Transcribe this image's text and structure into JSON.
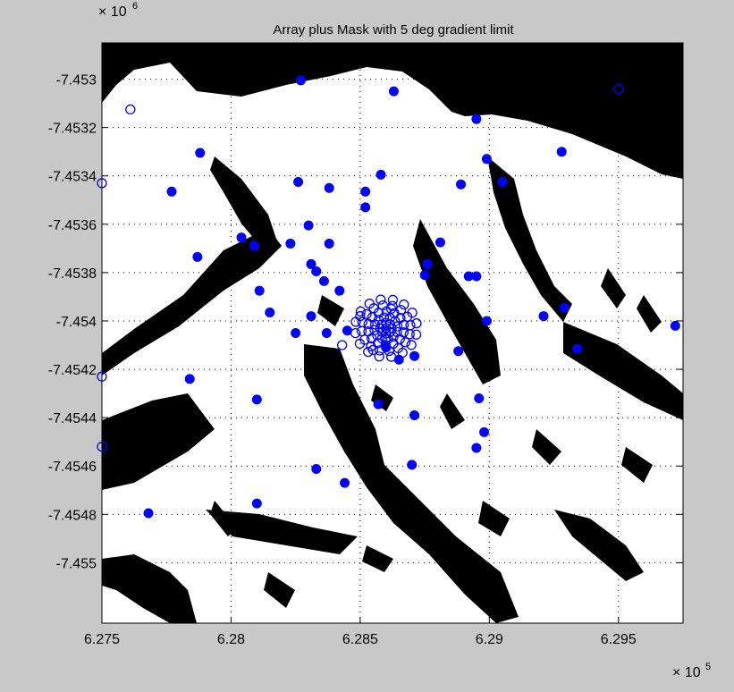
{
  "chart_data": {
    "type": "scatter",
    "title": "Array plus Mask with 5 deg gradient limit",
    "xlabel": "",
    "ylabel": "",
    "x_multiplier": {
      "base": "10",
      "exp": "5"
    },
    "y_multiplier": {
      "base": "10",
      "exp": "6"
    },
    "xlim": [
      627500,
      629750
    ],
    "ylim": [
      -7455250,
      -7452850
    ],
    "xticks": [
      627500,
      628000,
      628500,
      629000,
      629500
    ],
    "xtick_labels": [
      "6.275",
      "6.28",
      "6.285",
      "6.29",
      "6.295"
    ],
    "yticks": [
      -7455000,
      -7454800,
      -7454600,
      -7454400,
      -7454200,
      -7454000,
      -7453800,
      -7453600,
      -7453400,
      -7453200,
      -7453000
    ],
    "ytick_labels": [
      "-7.455",
      "-7.4548",
      "-7.4546",
      "-7.4544",
      "-7.4542",
      "-7.454",
      "-7.4538",
      "-7.4536",
      "-7.4534",
      "-7.4532",
      "-7.453"
    ],
    "grid": true,
    "background_mask": "binary black/white terrain mask (black = gradient above limit)",
    "colors": {
      "marker": "#0000ff",
      "mask": "#000000",
      "background": "#ffffff",
      "figure": "#c8c8c8"
    },
    "series": [
      {
        "marker": "filled-circle",
        "x": [
          627680,
          628100,
          628330,
          628440,
          628700,
          628980,
          628950,
          629720,
          628250,
          628100,
          628570,
          628710,
          627840,
          628960,
          628650,
          628710,
          628370,
          628310,
          628880,
          628150,
          628450,
          628600,
          628420,
          628330,
          628990,
          628110,
          629210,
          628920,
          628950,
          629340,
          627870,
          628040,
          628750,
          628520,
          628380,
          628380,
          629050,
          628580,
          629290,
          627770,
          628360,
          628310,
          628520,
          628760,
          628230,
          628890,
          628260,
          628950,
          628090,
          628810,
          629280,
          628300,
          627880,
          628990,
          628630,
          628270
        ],
        "y": [
          -7454795,
          -7454755,
          -7454612,
          -7454670,
          -7454595,
          -7454460,
          -7454525,
          -7454020,
          -7454050,
          -7454325,
          -7454345,
          -7454390,
          -7454240,
          -7454320,
          -7454160,
          -7454145,
          -7454050,
          -7453980,
          -7454125,
          -7453965,
          -7454040,
          -7454110,
          -7453875,
          -7453795,
          -7454000,
          -7453875,
          -7453980,
          -7453815,
          -7453815,
          -7454115,
          -7453735,
          -7453655,
          -7453810,
          -7453530,
          -7453450,
          -7453680,
          -7453425,
          -7453395,
          -7453945,
          -7453465,
          -7453835,
          -7453765,
          -7453465,
          -7453765,
          -7453680,
          -7453435,
          -7453425,
          -7453165,
          -7453690,
          -7453675,
          -7453300,
          -7453605,
          -7453305,
          -7453330,
          -7453050,
          -7453005
        ]
      },
      {
        "marker": "open-circle",
        "x": [
          627500,
          627500,
          627500,
          627610,
          629500,
          628600,
          628550,
          628500,
          628620,
          628430
        ],
        "y": [
          -7454520,
          -7454230,
          -7453430,
          -7453125,
          -7453040,
          -7454070,
          -7454120,
          -7453980,
          -7453950,
          -7454100
        ]
      }
    ],
    "cluster": {
      "marker": "open-circle",
      "center": [
        628600,
        -7454030
      ],
      "rings": [
        [
          22,
          8
        ],
        [
          45,
          12
        ],
        [
          70,
          14
        ],
        [
          95,
          16
        ],
        [
          120,
          16
        ]
      ]
    }
  }
}
